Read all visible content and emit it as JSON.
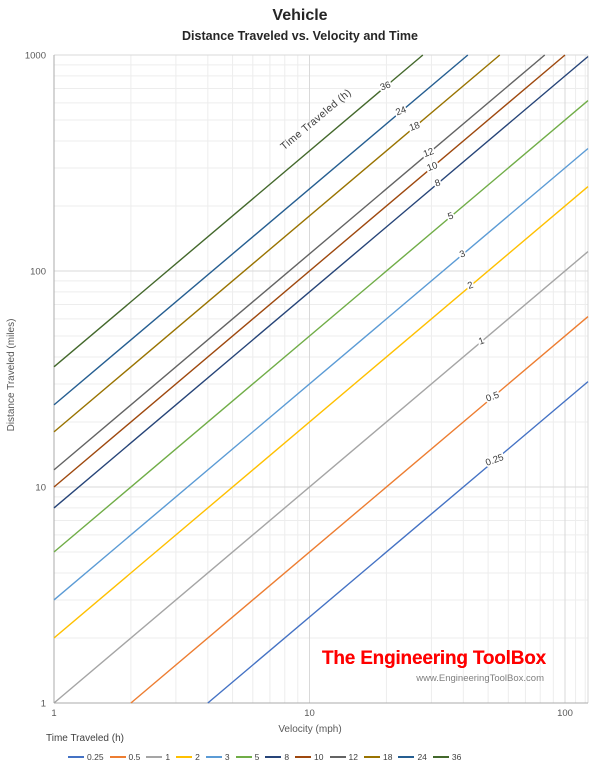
{
  "header": {
    "title": "Vehicle",
    "subtitle": "Distance Traveled vs. Velocity and Time"
  },
  "chart_data": {
    "type": "line",
    "title": "Vehicle",
    "subtitle": "Distance Traveled vs. Velocity and Time",
    "xlabel": "Velocity (mph)",
    "ylabel": "Distance Traveled (miles)",
    "x_scale": "log",
    "y_scale": "log",
    "xlim": [
      1,
      120
    ],
    "ylim": [
      1,
      1000
    ],
    "x_ticks": [
      "1",
      "10",
      "100"
    ],
    "y_ticks": [
      "1",
      "10",
      "100",
      "1000"
    ],
    "grid": {
      "major_color": "#D9D9D9",
      "minor_color": "#EDEDED",
      "axis_color": "#ABABAB",
      "minor_on": true
    },
    "relation": "distance_miles = velocity_mph × time_h",
    "annotation": "Time Traveled (h)",
    "legend_title": "Time Traveled (h)",
    "legend_position": "bottom",
    "series": [
      {
        "name": "0.25",
        "hours": 0.25,
        "color": "#4472C4",
        "label_v": 53.5
      },
      {
        "name": "0.5",
        "hours": 0.5,
        "color": "#ED7D31",
        "label_v": 52.5
      },
      {
        "name": "1",
        "hours": 1,
        "color": "#A5A5A5",
        "label_v": 47.5
      },
      {
        "name": "2",
        "hours": 2,
        "color": "#FFC000",
        "label_v": 43
      },
      {
        "name": "3",
        "hours": 3,
        "color": "#5B9BD5",
        "label_v": 40
      },
      {
        "name": "5",
        "hours": 5,
        "color": "#70AD47",
        "label_v": 36
      },
      {
        "name": "8",
        "hours": 8,
        "color": "#264478",
        "label_v": 32
      },
      {
        "name": "10",
        "hours": 10,
        "color": "#9E480E",
        "label_v": 30.5
      },
      {
        "name": "12",
        "hours": 12,
        "color": "#636363",
        "label_v": 29.5
      },
      {
        "name": "18",
        "hours": 18,
        "color": "#997300",
        "label_v": 26
      },
      {
        "name": "24",
        "hours": 24,
        "color": "#255E91",
        "label_v": 23
      },
      {
        "name": "36",
        "hours": 36,
        "color": "#43682B",
        "label_v": 20
      }
    ]
  },
  "branding": {
    "title": "The Engineering ToolBox",
    "url": "www.EngineeringToolBox.com",
    "title_color": "#FF0000",
    "url_color": "#7F7F7F"
  }
}
